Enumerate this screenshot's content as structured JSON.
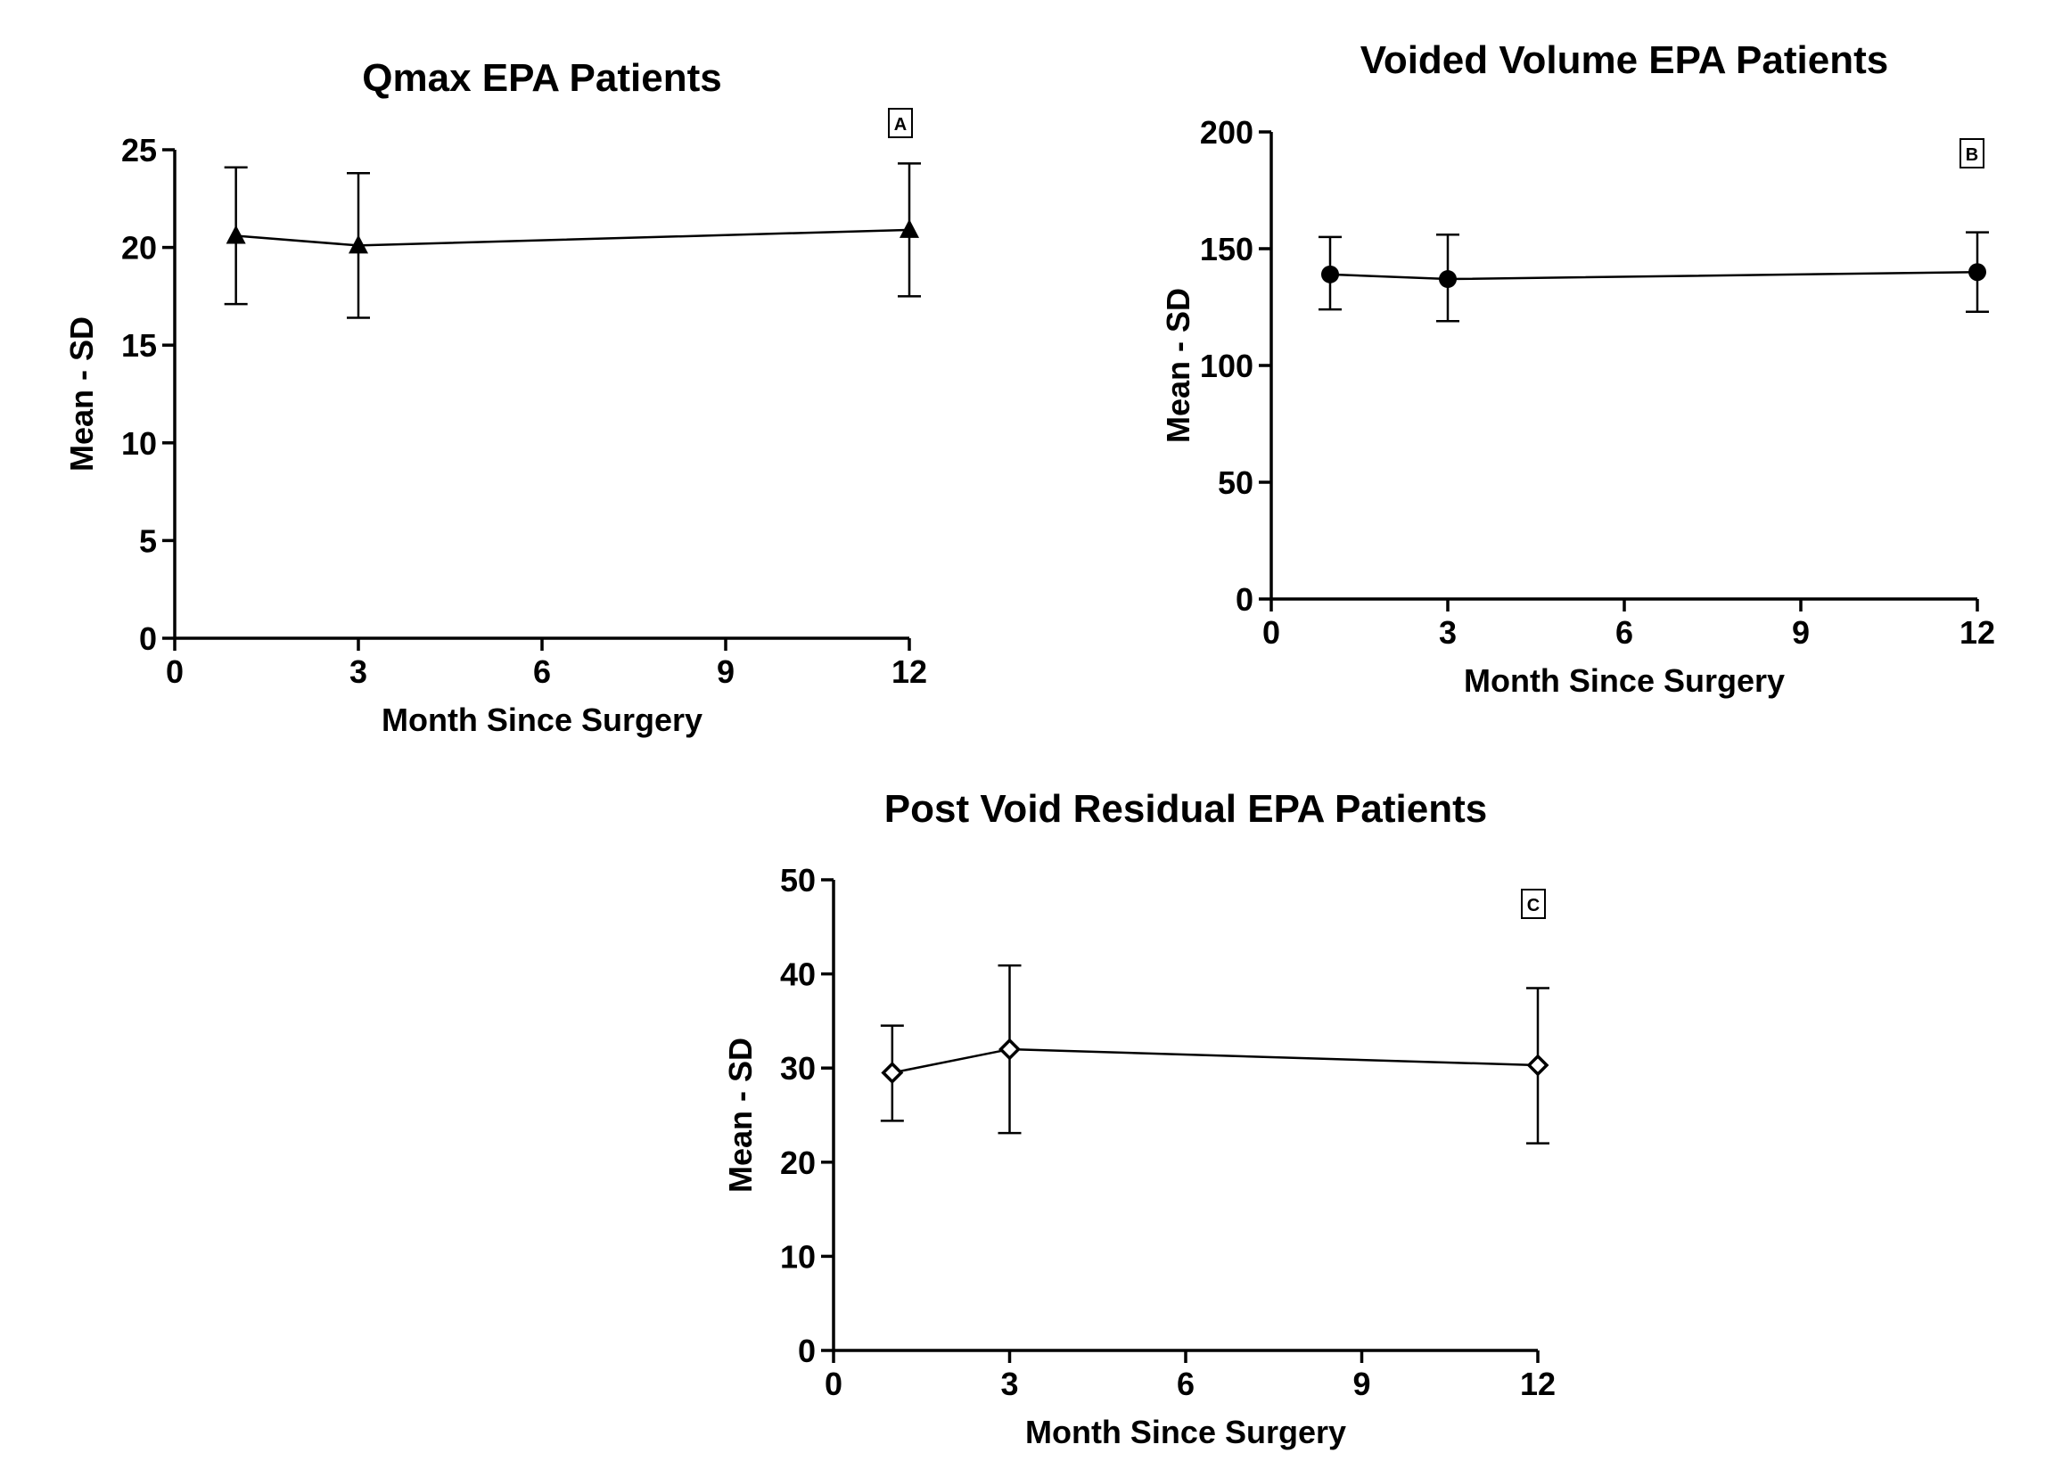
{
  "chart_data": [
    {
      "type": "line",
      "panel_label": "A",
      "title": "Qmax EPA Patients",
      "xlabel": "Month Since Surgery",
      "ylabel": "Mean - SD",
      "xlim": [
        0,
        12
      ],
      "ylim": [
        0,
        25
      ],
      "xticks": [
        0,
        3,
        6,
        9,
        12
      ],
      "yticks": [
        0,
        5,
        10,
        15,
        20,
        25
      ],
      "marker": "triangle",
      "x": [
        1,
        3,
        12
      ],
      "mean": [
        20.6,
        20.1,
        20.9
      ],
      "err_low": [
        17.1,
        16.4,
        17.5
      ],
      "err_high": [
        24.1,
        23.8,
        24.3
      ],
      "grid": false
    },
    {
      "type": "line",
      "panel_label": "B",
      "title": "Voided Volume EPA Patients",
      "xlabel": "Month Since Surgery",
      "ylabel": "Mean - SD",
      "xlim": [
        0,
        12
      ],
      "ylim": [
        0,
        200
      ],
      "xticks": [
        0,
        3,
        6,
        9,
        12
      ],
      "yticks": [
        0,
        50,
        100,
        150,
        200
      ],
      "marker": "circle",
      "x": [
        1,
        3,
        12
      ],
      "mean": [
        139,
        137,
        140
      ],
      "err_low": [
        124,
        119,
        123
      ],
      "err_high": [
        155,
        156,
        157
      ],
      "grid": false
    },
    {
      "type": "line",
      "panel_label": "C",
      "title": "Post Void Residual EPA Patients",
      "xlabel": "Month Since Surgery",
      "ylabel": "Mean - SD",
      "xlim": [
        0,
        12
      ],
      "ylim": [
        0,
        50
      ],
      "xticks": [
        0,
        3,
        6,
        9,
        12
      ],
      "yticks": [
        0,
        10,
        20,
        30,
        40,
        50
      ],
      "marker": "diamond-open",
      "x": [
        1,
        3,
        12
      ],
      "mean": [
        29.5,
        32.0,
        30.3
      ],
      "err_low": [
        24.4,
        23.1,
        22.0
      ],
      "err_high": [
        34.5,
        40.9,
        38.5
      ],
      "grid": false
    }
  ]
}
